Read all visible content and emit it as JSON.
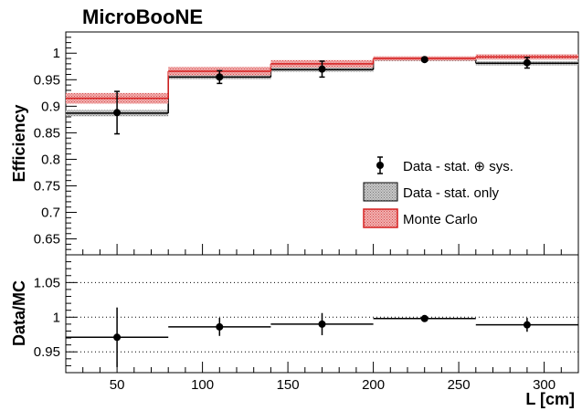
{
  "experiment": "MicroBooNE",
  "chart_data": [
    {
      "type": "line",
      "panel": "top",
      "xlabel": "",
      "ylabel": "Efficiency",
      "xlim": [
        20,
        320
      ],
      "ylim": [
        0.62,
        1.04
      ],
      "yticks": [
        "0.65",
        "0.7",
        "0.75",
        "0.8",
        "0.85",
        "0.9",
        "0.95",
        "1"
      ],
      "bin_edges": [
        20,
        80,
        140,
        200,
        260,
        320
      ],
      "series": [
        {
          "name": "Data - stat. ⊕ sys.",
          "style": "points-with-errors",
          "x": [
            50,
            110,
            170,
            230,
            290
          ],
          "y": [
            0.888,
            0.955,
            0.97,
            0.988,
            0.982
          ],
          "err": [
            0.04,
            0.012,
            0.015,
            0.003,
            0.01
          ]
        },
        {
          "name": "Data - stat. only",
          "style": "histogram-band",
          "y": [
            0.887,
            0.955,
            0.969,
            0.988,
            0.981
          ],
          "err": [
            0.006,
            0.004,
            0.004,
            0.003,
            0.004
          ]
        },
        {
          "name": "Monte Carlo",
          "style": "histogram-band",
          "y": [
            0.915,
            0.966,
            0.98,
            0.99,
            0.993
          ],
          "err": [
            0.01,
            0.008,
            0.007,
            0.004,
            0.005
          ]
        }
      ],
      "legend_position": "bottom-right"
    },
    {
      "type": "line",
      "panel": "bottom",
      "xlabel": "L [cm]",
      "ylabel": "Data/MC",
      "xlim": [
        20,
        320
      ],
      "ylim": [
        0.92,
        1.09
      ],
      "xticks": [
        "50",
        "100",
        "150",
        "200",
        "250",
        "300"
      ],
      "yticks": [
        "0.95",
        "1",
        "1.05"
      ],
      "dotted_lines": [
        0.95,
        1.0,
        1.05
      ],
      "bin_edges": [
        20,
        80,
        140,
        200,
        260,
        320
      ],
      "series": [
        {
          "name": "Data/MC",
          "style": "points-with-errors-and-bins",
          "x": [
            50,
            110,
            170,
            230,
            290
          ],
          "y": [
            0.971,
            0.986,
            0.99,
            0.998,
            0.989
          ],
          "err": [
            0.043,
            0.013,
            0.016,
            0.004,
            0.01
          ]
        }
      ]
    }
  ],
  "colors": {
    "mc_line": "#d62020",
    "mc_fill": "#ec9a9a",
    "stat_fill": "#b4b4b4",
    "data": "#000000"
  }
}
